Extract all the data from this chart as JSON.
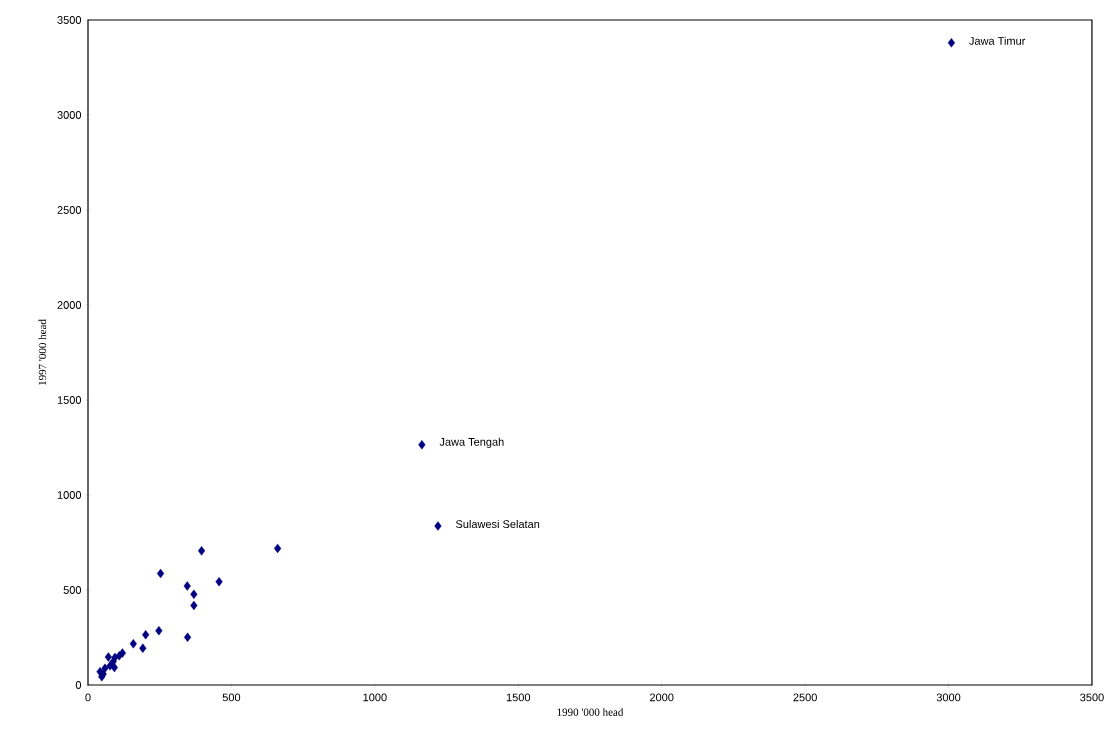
{
  "chart_data": {
    "type": "scatter",
    "xlabel": "1990  '000 head",
    "ylabel": "1997  '000 head",
    "x": [
      3010,
      1164,
      1220,
      396,
      661,
      253,
      457,
      346,
      369,
      369,
      247,
      201,
      347,
      158,
      191,
      120,
      109,
      94,
      71,
      88,
      77,
      92,
      59,
      42,
      48,
      53
    ],
    "series": [
      {
        "color": "#000080",
        "values": [
          3380,
          1264,
          837,
          706,
          719,
          587,
          544,
          521,
          477,
          419,
          286,
          265,
          251,
          217,
          194,
          168,
          154,
          145,
          147,
          124,
          101,
          92,
          88,
          70,
          44,
          58
        ]
      }
    ],
    "annotations": [
      {
        "text": "Jawa Timur",
        "x": 3010,
        "y": 3380
      },
      {
        "text": "Jawa Tengah",
        "x": 1164,
        "y": 1264
      },
      {
        "text": "Sulawesi Selatan",
        "x": 1220,
        "y": 837
      }
    ],
    "xlim": [
      0,
      3500
    ],
    "ylim": [
      0,
      3500
    ],
    "xticks": [
      0,
      500,
      1000,
      1500,
      2000,
      2500,
      3000,
      3500
    ],
    "yticks": [
      0,
      500,
      1000,
      1500,
      2000,
      2500,
      3000,
      3500
    ],
    "grid": false,
    "marker": "diamond"
  }
}
